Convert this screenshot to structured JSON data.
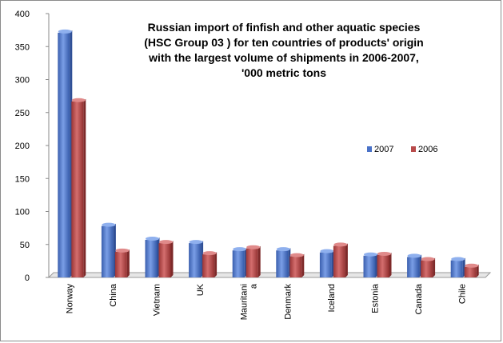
{
  "chart_data": {
    "type": "bar",
    "title_lines": [
      "Russian import of finfish and other aquatic species",
      "(HSC Group 03 ) for ten countries of products' origin",
      "with the largest volume of shipments in 2006-2007,",
      "'000 metric tons"
    ],
    "categories": [
      "Norway",
      "China",
      "Vietnam",
      "UK",
      "Mauritani a",
      "Denmark",
      "Iceland",
      "Estonia",
      "Canada",
      "Chile"
    ],
    "category_label_lines": [
      [
        "Norway"
      ],
      [
        "China"
      ],
      [
        "Vietnam"
      ],
      [
        "UK"
      ],
      [
        "Mauritani",
        "a"
      ],
      [
        "Denmark"
      ],
      [
        "Iceland"
      ],
      [
        "Estonia"
      ],
      [
        "Canada"
      ],
      [
        "Chile"
      ]
    ],
    "series": [
      {
        "name": "2007",
        "color": "#4a72c8",
        "values": [
          371,
          78,
          57,
          52,
          41,
          41,
          38,
          33,
          31,
          26
        ]
      },
      {
        "name": "2006",
        "color": "#b84a4a",
        "values": [
          267,
          39,
          52,
          35,
          44,
          32,
          48,
          34,
          26,
          16
        ]
      }
    ],
    "ylim": [
      0,
      400
    ],
    "yticks": [
      "0",
      "50",
      "100",
      "150",
      "200",
      "250",
      "300",
      "350",
      "400"
    ],
    "legend_position": "right",
    "grid": false
  }
}
